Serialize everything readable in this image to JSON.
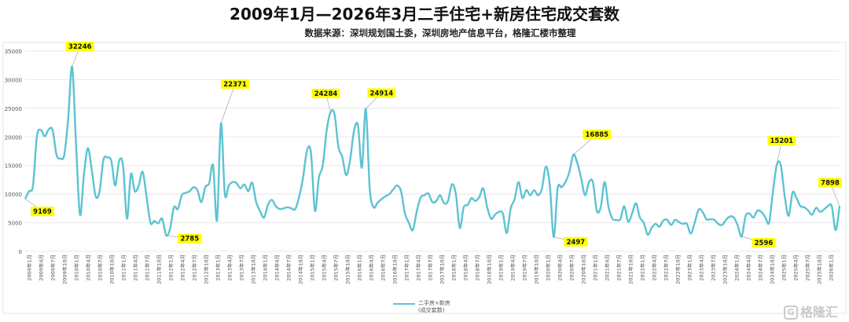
{
  "chart_data": {
    "type": "line",
    "title": "2009年1月—2026年3月二手住宅+新房住宅成交套数",
    "subtitle": "数据来源：深圳规划国土委，深圳房地产信息平台，格隆汇楼市整理",
    "xlabel": "",
    "ylabel": "",
    "ylim": [
      0,
      35000
    ],
    "y_ticks": [
      0,
      5000,
      10000,
      15000,
      20000,
      25000,
      30000,
      35000
    ],
    "grid": true,
    "legend_position": "bottom",
    "line_color": "#5cc3d2",
    "annotation_color": "#ffff00",
    "x_tick_labels": [
      "2009年1月",
      "2009年4月",
      "2009年7月",
      "2009年10月",
      "2010年1月",
      "2010年4月",
      "2010年7月",
      "2010年10月",
      "2011年1月",
      "2011年4月",
      "2011年7月",
      "2011年10月",
      "2012年1月",
      "2012年4月",
      "2012年7月",
      "2012年10月",
      "2013年1月",
      "2013年4月",
      "2013年7月",
      "2013年10月",
      "2014年1月",
      "2014年4月",
      "2014年7月",
      "2014年10月",
      "2015年1月",
      "2015年4月",
      "2015年7月",
      "2015年10月",
      "2016年1月",
      "2016年4月",
      "2016年7月",
      "2016年10月",
      "2017年1月",
      "2017年4月",
      "2017年7月",
      "2017年10月",
      "2018年1月",
      "2018年4月",
      "2018年7月",
      "2018年10月",
      "2019年1月",
      "2019年4月",
      "2019年7月",
      "2019年10月",
      "2020年1月",
      "2020年4月",
      "2020年7月",
      "2020年10月",
      "2021年1月",
      "2021年4月",
      "2021年7月",
      "2021年10月",
      "2022年1月",
      "2022年4月",
      "2022年7月",
      "2022年10月",
      "2023年1月",
      "2023年4月",
      "2023年7月",
      "2023年10月",
      "2024年1月",
      "2024年4月",
      "2024年7月",
      "2024年10月",
      "2025年1月",
      "2025年4月",
      "2025年7月",
      "2025年10月",
      "2026年1月"
    ],
    "series": [
      {
        "name": "二手房+新房",
        "name_line2": "(成交套数)",
        "values": [
          9169,
          10500,
          11500,
          20100,
          21200,
          20100,
          21300,
          21200,
          16900,
          16200,
          16900,
          23300,
          32246,
          18700,
          6400,
          13300,
          18000,
          14300,
          9600,
          10500,
          16000,
          16400,
          15800,
          11500,
          15800,
          15000,
          5700,
          13500,
          10500,
          11500,
          13900,
          9600,
          5000,
          5300,
          4900,
          5700,
          2785,
          3900,
          7700,
          7400,
          9800,
          10200,
          10500,
          11200,
          10700,
          8600,
          11200,
          11900,
          15000,
          5400,
          22371,
          10000,
          11500,
          12100,
          11900,
          11000,
          11700,
          10500,
          12000,
          8600,
          7000,
          5900,
          8100,
          9000,
          7900,
          7400,
          7500,
          7700,
          7500,
          7400,
          9600,
          13000,
          17700,
          17200,
          7100,
          12800,
          15000,
          21100,
          24284,
          24000,
          18300,
          16500,
          13300,
          16000,
          21100,
          22000,
          14600,
          24914,
          11000,
          7700,
          8500,
          9100,
          9600,
          10000,
          10800,
          11500,
          10500,
          6600,
          5000,
          3700,
          6900,
          9400,
          9800,
          10100,
          8600,
          8800,
          9800,
          8400,
          8800,
          11700,
          10000,
          4100,
          7700,
          8100,
          9300,
          8800,
          9500,
          11000,
          7700,
          5700,
          6400,
          6900,
          6600,
          3200,
          7500,
          9100,
          12100,
          9300,
          10700,
          9800,
          10700,
          9800,
          11000,
          14800,
          11500,
          2497,
          11000,
          11200,
          12100,
          13900,
          16885,
          15500,
          12800,
          9800,
          12100,
          12100,
          7100,
          7700,
          12100,
          7700,
          5700,
          5500,
          5600,
          7900,
          5200,
          6600,
          8400,
          5900,
          5000,
          2900,
          4100,
          4800,
          4300,
          5400,
          5500,
          4600,
          5500,
          5100,
          4800,
          4800,
          3100,
          5000,
          7300,
          6900,
          5600,
          5600,
          5500,
          4800,
          4600,
          5500,
          6100,
          5900,
          4500,
          2596,
          6200,
          6600,
          5900,
          7100,
          6900,
          6000,
          5000,
          10500,
          15201,
          15000,
          9600,
          6200,
          10300,
          9300,
          7900,
          7700,
          7100,
          6400,
          7600,
          6900,
          7300,
          7900,
          7900,
          3700,
          7898
        ]
      }
    ],
    "annotations": [
      9169,
      32246,
      2785,
      22371,
      24284,
      24914,
      2497,
      16885,
      2596,
      15201,
      7898
    ]
  },
  "watermark": {
    "text": "格隆汇",
    "icon": "G-logo-icon"
  }
}
